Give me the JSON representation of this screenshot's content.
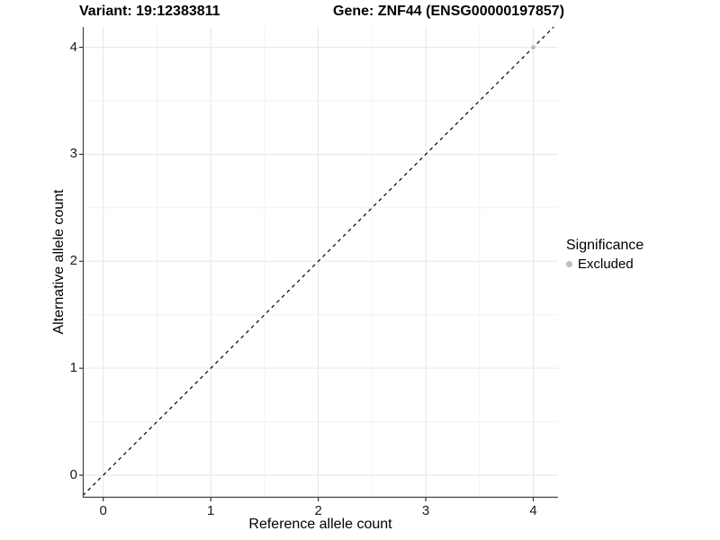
{
  "figure": {
    "title_left": "Variant: 19:12383811",
    "title_right": "Gene: ZNF44 (ENSG00000197857)"
  },
  "chart_data": {
    "type": "scatter",
    "title": "Variant: 19:12383811 — Gene: ZNF44 (ENSG00000197857)",
    "xlabel": "Reference allele count",
    "ylabel": "Alternative allele count",
    "xlim": [
      -0.19,
      4.23
    ],
    "ylim": [
      -0.21,
      4.19
    ],
    "x_ticks": [
      0,
      1,
      2,
      3,
      4
    ],
    "y_ticks": [
      0,
      1,
      2,
      3,
      4
    ],
    "x_minor_ticks": [
      0.5,
      1.5,
      2.5,
      3.5
    ],
    "y_minor_ticks": [
      0.5,
      1.5,
      2.5,
      3.5
    ],
    "grid": true,
    "identity_line": {
      "equation": "y = x",
      "style": "dashed",
      "color": "#000000"
    },
    "series": [
      {
        "name": "Excluded",
        "color": "#bebebe",
        "points": [
          {
            "x": 4,
            "y": 4
          }
        ]
      }
    ],
    "legend": {
      "title": "Significance",
      "position": "right",
      "items": [
        {
          "label": "Excluded",
          "color": "#bebebe"
        }
      ]
    }
  },
  "colors": {
    "background": "#ffffff",
    "axis_line": "#404040",
    "major_grid": "#e6e6e6",
    "minor_grid": "#f2f2f2",
    "tick_mark": "#333333",
    "point": "#bebebe"
  }
}
